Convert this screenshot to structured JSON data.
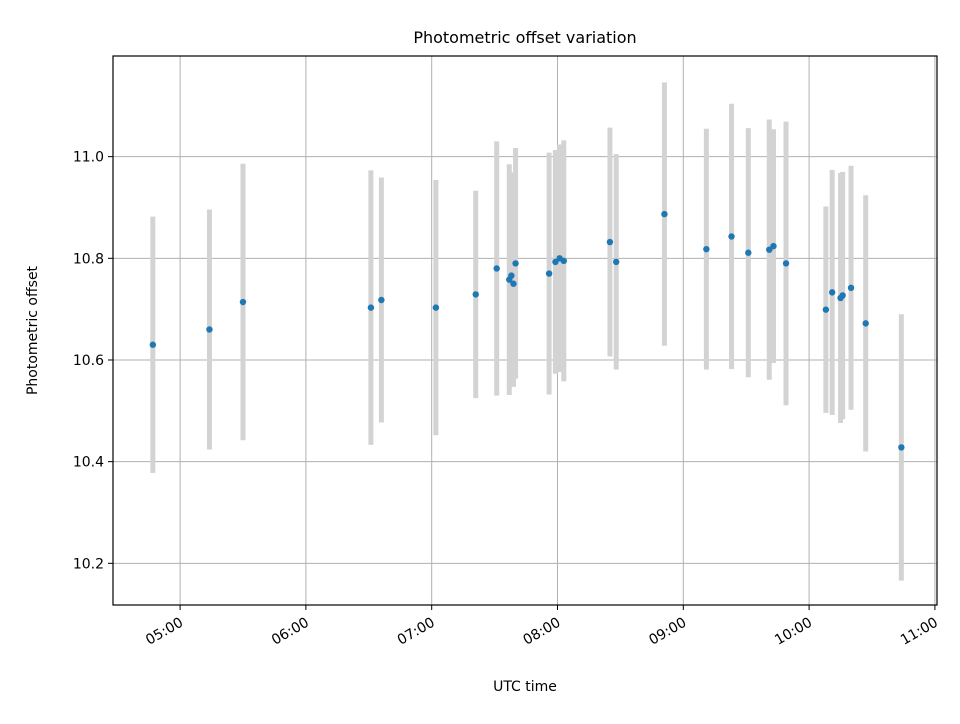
{
  "chart_data": {
    "type": "scatter",
    "title": "Photometric offset variation",
    "xlabel": "UTC time",
    "ylabel": "Photometric offset",
    "x_tick_labels": [
      "05:00",
      "06:00",
      "07:00",
      "08:00",
      "09:00",
      "10:00",
      "11:00"
    ],
    "y_tick_labels": [
      "10.2",
      "10.4",
      "10.6",
      "10.8",
      "11.0"
    ],
    "x_ticks": [
      "05:00",
      "06:00",
      "07:00",
      "08:00",
      "09:00",
      "10:00",
      "11:00"
    ],
    "y_ticks": [
      10.2,
      10.4,
      10.6,
      10.8,
      11.0
    ],
    "xlim": [
      "04:28",
      "11:01"
    ],
    "ylim": [
      10.118,
      11.198
    ],
    "grid": true,
    "point_color": "#1f77b4",
    "errorbar_color": "#d3d3d3",
    "series": [
      {
        "points": [
          {
            "x": "04:47",
            "y": 10.63,
            "err": 0.252
          },
          {
            "x": "05:14",
            "y": 10.66,
            "err": 0.236
          },
          {
            "x": "05:30",
            "y": 10.714,
            "err": 0.272
          },
          {
            "x": "06:31",
            "y": 10.703,
            "err": 0.27
          },
          {
            "x": "06:36",
            "y": 10.718,
            "err": 0.241
          },
          {
            "x": "07:02",
            "y": 10.703,
            "err": 0.251
          },
          {
            "x": "07:21",
            "y": 10.729,
            "err": 0.204
          },
          {
            "x": "07:31",
            "y": 10.78,
            "err": 0.25
          },
          {
            "x": "07:37",
            "y": 10.758,
            "err": 0.227
          },
          {
            "x": "07:38",
            "y": 10.766,
            "err": 0.203
          },
          {
            "x": "07:39",
            "y": 10.75,
            "err": 0.203
          },
          {
            "x": "07:40",
            "y": 10.79,
            "err": 0.227
          },
          {
            "x": "07:56",
            "y": 10.77,
            "err": 0.238
          },
          {
            "x": "07:59",
            "y": 10.793,
            "err": 0.22
          },
          {
            "x": "08:01",
            "y": 10.8,
            "err": 0.224
          },
          {
            "x": "08:03",
            "y": 10.795,
            "err": 0.237
          },
          {
            "x": "08:25",
            "y": 10.832,
            "err": 0.225
          },
          {
            "x": "08:28",
            "y": 10.793,
            "err": 0.212
          },
          {
            "x": "08:51",
            "y": 10.887,
            "err": 0.259
          },
          {
            "x": "09:11",
            "y": 10.818,
            "err": 0.237
          },
          {
            "x": "09:23",
            "y": 10.843,
            "err": 0.261
          },
          {
            "x": "09:31",
            "y": 10.811,
            "err": 0.245
          },
          {
            "x": "09:41",
            "y": 10.817,
            "err": 0.256
          },
          {
            "x": "09:43",
            "y": 10.824,
            "err": 0.23
          },
          {
            "x": "09:49",
            "y": 10.79,
            "err": 0.279
          },
          {
            "x": "10:08",
            "y": 10.699,
            "err": 0.203
          },
          {
            "x": "10:11",
            "y": 10.733,
            "err": 0.241
          },
          {
            "x": "10:15",
            "y": 10.722,
            "err": 0.246
          },
          {
            "x": "10:16",
            "y": 10.727,
            "err": 0.243
          },
          {
            "x": "10:20",
            "y": 10.742,
            "err": 0.24
          },
          {
            "x": "10:27",
            "y": 10.672,
            "err": 0.252
          },
          {
            "x": "10:44",
            "y": 10.428,
            "err": 0.262
          }
        ]
      }
    ]
  }
}
